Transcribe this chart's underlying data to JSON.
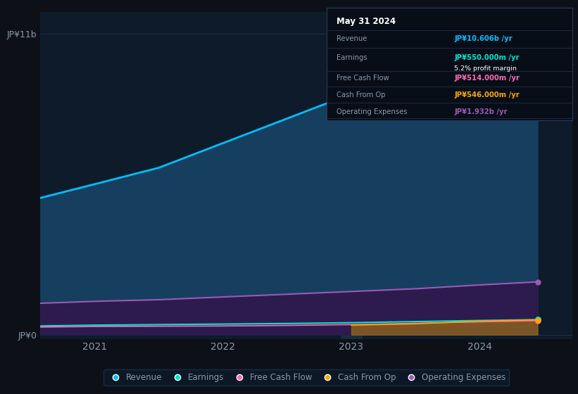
{
  "background_color": "#0d1117",
  "plot_bg_color": "#0d1b2a",
  "ylabel": "JP¥11b",
  "y0label": "JP¥0",
  "xlim_left": 2020.58,
  "xlim_right": 2024.72,
  "ylim_bottom": -150000000.0,
  "ylim_top": 11800000000.0,
  "years": [
    2020.58,
    2021.0,
    2021.5,
    2022.0,
    2022.5,
    2023.0,
    2023.5,
    2024.0,
    2024.45
  ],
  "revenue": [
    5000000000.0,
    5500000000.0,
    6100000000.0,
    7000000000.0,
    7900000000.0,
    8800000000.0,
    9600000000.0,
    10300000000.0,
    10606000000.0
  ],
  "earnings": [
    320000000.0,
    350000000.0,
    370000000.0,
    390000000.0,
    410000000.0,
    440000000.0,
    480000000.0,
    520000000.0,
    550000000.0
  ],
  "free_cash_flow": [
    280000000.0,
    300000000.0,
    310000000.0,
    320000000.0,
    340000000.0,
    370000000.0,
    420000000.0,
    470000000.0,
    514000000.0
  ],
  "cash_from_op": [
    0.0,
    0.0,
    0.0,
    0.0,
    0.0,
    350000000.0,
    400000000.0,
    500000000.0,
    546000000.0
  ],
  "op_expenses": [
    1150000000.0,
    1220000000.0,
    1280000000.0,
    1380000000.0,
    1480000000.0,
    1580000000.0,
    1680000000.0,
    1820000000.0,
    1932000000.0
  ],
  "revenue_color": "#00bfff",
  "revenue_fill": "#163f5f",
  "earnings_color": "#00e5cc",
  "free_cash_flow_color": "#ff69b4",
  "cash_from_op_color": "#ffa500",
  "op_expenses_color": "#9b59b6",
  "op_expenses_fill": "#2d1b4e",
  "cash_from_op_fill": "#8b6020",
  "grid_color": "#1e3050",
  "text_color": "#8899aa",
  "highlight_color": "#1e2d40",
  "tooltip_bg": "#080e18",
  "tooltip_border": "#2a3a5a",
  "title": "May 31 2024",
  "revenue_label": "Revenue",
  "revenue_val": "JP¥10.606b /yr",
  "earnings_label": "Earnings",
  "earnings_val": "JP¥550.000m /yr",
  "profit_margin_txt": "5.2% profit margin",
  "fcf_label": "Free Cash Flow",
  "fcf_val": "JP¥514.000m /yr",
  "cashop_label": "Cash From Op",
  "cashop_val": "JP¥546.000m /yr",
  "opex_label": "Operating Expenses",
  "opex_val": "JP¥1.932b /yr",
  "legend_labels": [
    "Revenue",
    "Earnings",
    "Free Cash Flow",
    "Cash From Op",
    "Operating Expenses"
  ],
  "legend_colors": [
    "#00bfff",
    "#00e5cc",
    "#ff69b4",
    "#ffa500",
    "#9b59b6"
  ]
}
